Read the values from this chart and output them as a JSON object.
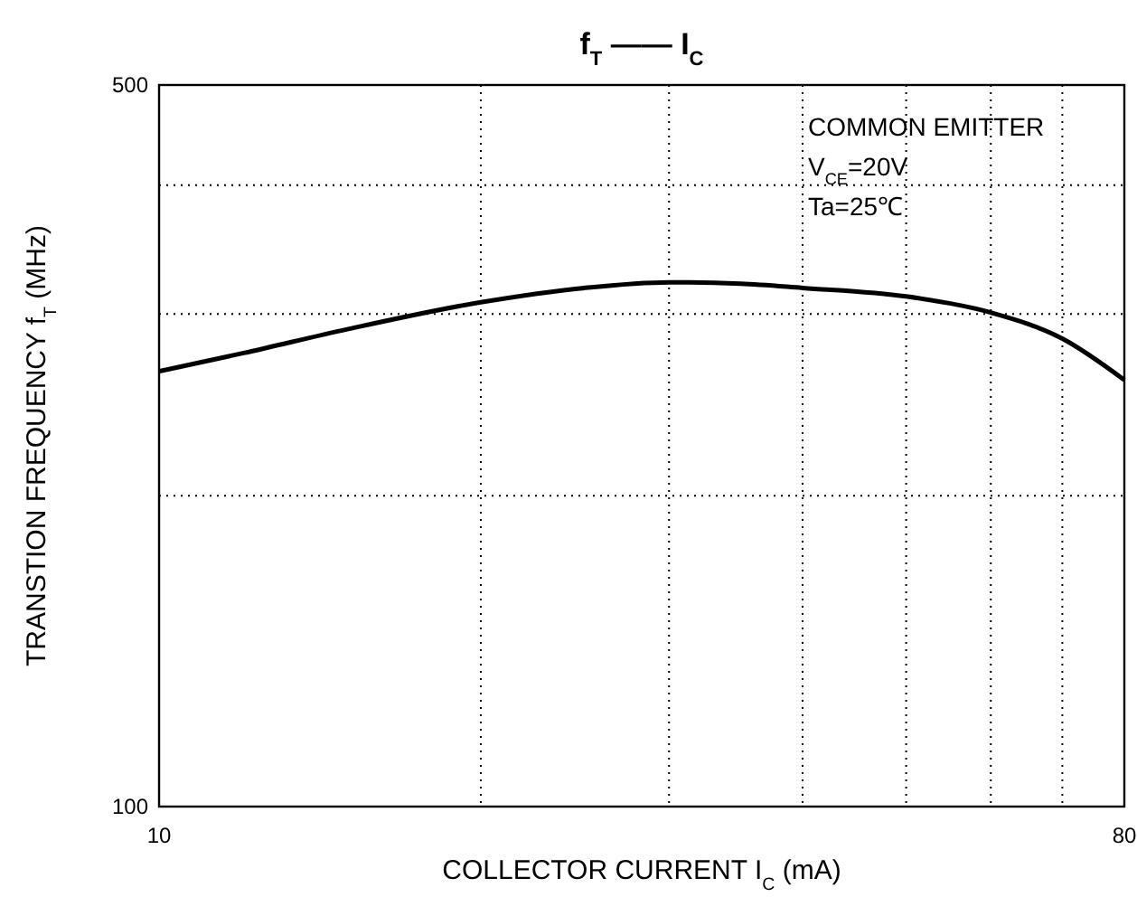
{
  "chart_data": {
    "type": "line",
    "title": "f$_{T}$ —— I$_{C}$",
    "xlabel": "COLLECTOR CURRENT   I$_{C}$    (mA)",
    "ylabel": "TRANSTION FREQUENCY    f$_{T}$    (MHz)",
    "annotations": [
      "COMMON EMITTER",
      "V$_{CE}$=20V",
      "Ta=25℃"
    ],
    "x": [
      10,
      12,
      15,
      20,
      25,
      30,
      35,
      40,
      50,
      60,
      70,
      80
    ],
    "series": [
      {
        "color": "#000000",
        "values": [
          264,
          275,
          290,
          308,
          318,
          322,
          321,
          318,
          312,
          301,
          284,
          259
        ]
      }
    ],
    "log": "xy",
    "xlim": [
      10,
      80
    ],
    "ylim": [
      100,
      500
    ],
    "xticks": [
      10,
      {
        "value": 20,
        "label": null
      },
      {
        "value": 30,
        "label": null
      },
      {
        "value": 40,
        "label": null
      },
      {
        "value": 50,
        "label": null
      },
      {
        "value": 60,
        "label": null
      },
      {
        "value": 70,
        "label": null
      },
      80
    ],
    "yticks": [
      100,
      {
        "value": 200,
        "label": null
      },
      {
        "value": 300,
        "label": null
      },
      {
        "value": 400,
        "label": null
      },
      500
    ],
    "grid": true,
    "marker": "none",
    "line_style": "solid"
  }
}
